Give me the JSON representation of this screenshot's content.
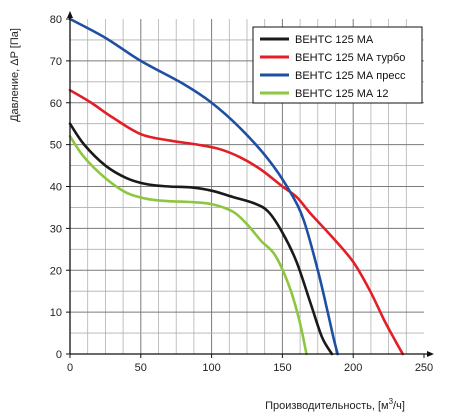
{
  "chart_data": {
    "type": "line",
    "title": "",
    "xlabel": "Производительность, [м",
    "xlabel_sup": "3",
    "xlabel_tail": "/ч]",
    "ylabel": "Давление, ΔP [Па]",
    "xlim": [
      0,
      250
    ],
    "ylim": [
      0,
      80
    ],
    "x_ticks": [
      "0",
      "50",
      "100",
      "150",
      "200",
      "250"
    ],
    "y_ticks": [
      "0",
      "10",
      "20",
      "30",
      "40",
      "50",
      "60",
      "70",
      "80"
    ],
    "grid": true,
    "legend_position": "top-right",
    "series": [
      {
        "name": "ВЕНТС 125 МА",
        "color": "#1a1a1a",
        "x": [
          0,
          10,
          25,
          40,
          55,
          70,
          85,
          100,
          115,
          130,
          140,
          150,
          160,
          170,
          178,
          185
        ],
        "y": [
          55,
          50,
          45,
          42,
          40.5,
          40,
          39.8,
          39,
          37.5,
          36,
          34,
          29,
          22,
          12,
          4,
          0
        ]
      },
      {
        "name": "ВЕНТС 125 МА турбо",
        "color": "#e41e26",
        "x": [
          0,
          15,
          30,
          50,
          70,
          90,
          105,
          120,
          135,
          150,
          160,
          170,
          185,
          200,
          212,
          222,
          230,
          235
        ],
        "y": [
          63,
          60,
          56.5,
          52.5,
          51,
          50,
          49,
          47,
          44,
          40,
          37.5,
          33.5,
          28,
          22,
          15,
          8,
          3,
          0
        ]
      },
      {
        "name": "ВЕНТС 125 МА пресс",
        "color": "#1f4fa2",
        "x": [
          0,
          25,
          50,
          80,
          100,
          120,
          140,
          155,
          165,
          175,
          182,
          186,
          189
        ],
        "y": [
          80,
          75.5,
          70,
          64.5,
          60,
          54,
          46.5,
          39,
          32,
          20,
          10,
          4,
          0
        ]
      },
      {
        "name": "ВЕНТС 125 МА  12",
        "color": "#8dc63f",
        "x": [
          0,
          10,
          25,
          40,
          55,
          70,
          85,
          100,
          115,
          125,
          135,
          145,
          155,
          162,
          167
        ],
        "y": [
          52,
          47,
          42,
          38.5,
          37,
          36.5,
          36.3,
          35.8,
          34,
          31,
          27,
          23.5,
          16,
          8,
          0
        ]
      }
    ]
  }
}
